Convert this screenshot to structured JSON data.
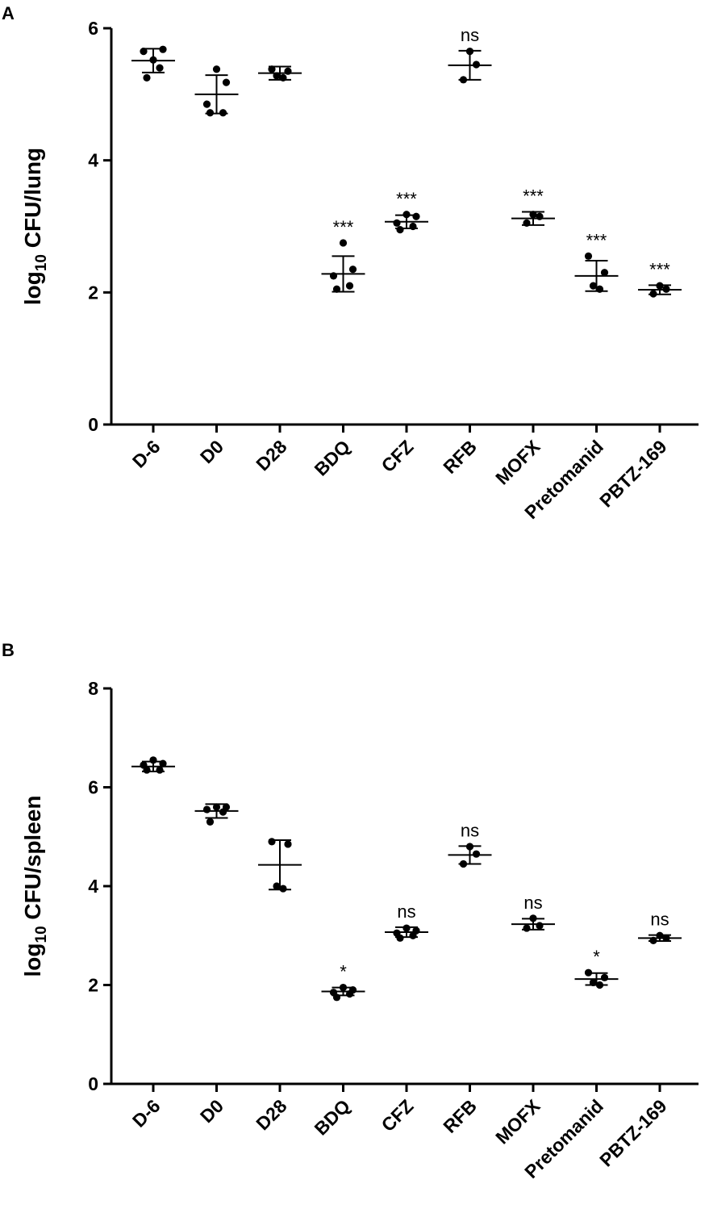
{
  "panels": [
    {
      "label": "A"
    },
    {
      "label": "B"
    }
  ],
  "chart_data": [
    {
      "type": "scatter",
      "subtype": "dot plot with mean and SD error bars",
      "panel": "A",
      "ylabel_main": "log",
      "ylabel_sub": "10",
      "ylabel_rest": " CFU/lung",
      "ylim": [
        0,
        6
      ],
      "yticks": [
        0,
        2,
        4,
        6
      ],
      "categories": [
        "D-6",
        "D0",
        "D28",
        "BDQ",
        "CFZ",
        "RFB",
        "MOFX",
        "Pretomanid",
        "PBTZ-169"
      ],
      "points": [
        [
          5.52,
          5.68,
          5.65,
          5.4,
          5.25
        ],
        [
          5.38,
          5.18,
          4.85,
          4.72,
          4.72
        ],
        [
          5.38,
          5.35,
          5.28,
          5.25
        ],
        [
          2.75,
          2.35,
          2.25,
          2.1,
          2.05
        ],
        [
          3.18,
          3.15,
          3.05,
          3.0,
          2.95
        ],
        [
          5.65,
          5.45,
          5.22
        ],
        [
          3.18,
          3.15,
          3.05
        ],
        [
          2.55,
          2.3,
          2.1,
          2.05
        ],
        [
          2.1,
          2.05,
          1.98
        ]
      ],
      "means": [
        5.51,
        5.0,
        5.32,
        2.28,
        3.07,
        5.44,
        3.12,
        2.25,
        2.04
      ],
      "sds": [
        0.18,
        0.29,
        0.1,
        0.27,
        0.1,
        0.22,
        0.1,
        0.23,
        0.07
      ],
      "annotations": [
        "",
        "",
        "",
        "***",
        "***",
        "ns",
        "***",
        "***",
        "***"
      ],
      "grid": false,
      "legend": "none"
    },
    {
      "type": "scatter",
      "subtype": "dot plot with mean and SD error bars",
      "panel": "B",
      "ylabel_main": "log",
      "ylabel_sub": "10",
      "ylabel_rest": " CFU/spleen",
      "ylim": [
        0,
        8
      ],
      "yticks": [
        0,
        2,
        4,
        6,
        8
      ],
      "categories": [
        "D-6",
        "D0",
        "D28",
        "BDQ",
        "CFZ",
        "RFB",
        "MOFX",
        "Pretomanid",
        "PBTZ-169"
      ],
      "points": [
        [
          6.55,
          6.48,
          6.45,
          6.35,
          6.35
        ],
        [
          5.6,
          5.6,
          5.55,
          5.5,
          5.3
        ],
        [
          4.9,
          4.85,
          4.0,
          3.95
        ],
        [
          1.95,
          1.9,
          1.85,
          1.82,
          1.75
        ],
        [
          3.15,
          3.1,
          3.05,
          3.0,
          2.95
        ],
        [
          4.8,
          4.65,
          4.45
        ],
        [
          3.35,
          3.2,
          3.15
        ],
        [
          2.25,
          2.15,
          2.05,
          2.0
        ],
        [
          3.0,
          2.95,
          2.9
        ]
      ],
      "means": [
        6.42,
        5.52,
        4.43,
        1.87,
        3.07,
        4.63,
        3.23,
        2.12,
        2.95
      ],
      "sds": [
        0.1,
        0.14,
        0.5,
        0.08,
        0.1,
        0.18,
        0.11,
        0.12,
        0.06
      ],
      "annotations": [
        "",
        "",
        "",
        "*",
        "ns",
        "ns",
        "ns",
        "*",
        "ns"
      ],
      "grid": false,
      "legend": "none"
    }
  ]
}
